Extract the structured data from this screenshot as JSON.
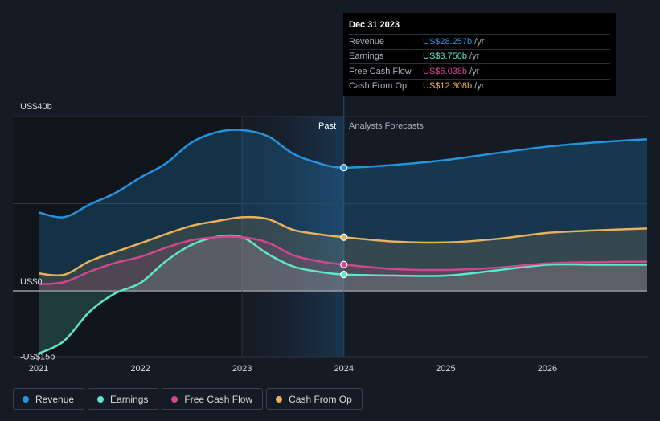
{
  "chart_data": {
    "type": "area",
    "x_unit": "year",
    "x_range": [
      2021.0,
      2026.98
    ],
    "y_range": [
      -15.5,
      40
    ],
    "y_ticks": [
      {
        "value": 40,
        "label": "US$40b"
      },
      {
        "value": 0,
        "label": "US$0"
      },
      {
        "value": -15,
        "label": "-US$15b"
      }
    ],
    "x_ticks": [
      {
        "value": 2021,
        "label": "2021"
      },
      {
        "value": 2022,
        "label": "2022"
      },
      {
        "value": 2023,
        "label": "2023"
      },
      {
        "value": 2024,
        "label": "2024"
      },
      {
        "value": 2025,
        "label": "2025"
      },
      {
        "value": 2026,
        "label": "2026"
      }
    ],
    "past_label": "Past",
    "forecast_label": "Analysts Forecasts",
    "past_end": 2024.0,
    "series": [
      {
        "name": "Revenue",
        "color": "#2394df",
        "points": [
          [
            2021.0,
            18.0
          ],
          [
            2021.25,
            16.9
          ],
          [
            2021.5,
            19.8
          ],
          [
            2021.75,
            22.4
          ],
          [
            2022.0,
            26.0
          ],
          [
            2022.25,
            29.2
          ],
          [
            2022.5,
            34.0
          ],
          [
            2022.75,
            36.4
          ],
          [
            2023.0,
            36.9
          ],
          [
            2023.25,
            35.5
          ],
          [
            2023.5,
            31.5
          ],
          [
            2023.75,
            29.3
          ],
          [
            2024.0,
            28.257
          ],
          [
            2024.5,
            28.9
          ],
          [
            2025.0,
            30.0
          ],
          [
            2025.5,
            31.6
          ],
          [
            2026.0,
            33.1
          ],
          [
            2026.5,
            34.1
          ],
          [
            2026.98,
            34.8
          ]
        ]
      },
      {
        "name": "Earnings",
        "color": "#5ee6c8",
        "points": [
          [
            2021.0,
            -14.4
          ],
          [
            2021.25,
            -11.5
          ],
          [
            2021.5,
            -4.8
          ],
          [
            2021.75,
            -0.6
          ],
          [
            2022.0,
            1.8
          ],
          [
            2022.25,
            6.8
          ],
          [
            2022.5,
            10.5
          ],
          [
            2022.75,
            12.4
          ],
          [
            2023.0,
            12.3
          ],
          [
            2023.25,
            8.5
          ],
          [
            2023.5,
            5.6
          ],
          [
            2023.75,
            4.4
          ],
          [
            2024.0,
            3.75
          ],
          [
            2024.5,
            3.5
          ],
          [
            2025.0,
            3.5
          ],
          [
            2025.5,
            4.7
          ],
          [
            2026.0,
            6.0
          ],
          [
            2026.5,
            6.0
          ],
          [
            2026.98,
            6.0
          ]
        ]
      },
      {
        "name": "Free Cash Flow",
        "color": "#d1478e",
        "points": [
          [
            2021.0,
            1.5
          ],
          [
            2021.25,
            2.0
          ],
          [
            2021.5,
            4.4
          ],
          [
            2021.75,
            6.4
          ],
          [
            2022.0,
            7.8
          ],
          [
            2022.25,
            9.9
          ],
          [
            2022.5,
            11.6
          ],
          [
            2022.75,
            12.3
          ],
          [
            2023.0,
            12.3
          ],
          [
            2023.25,
            11.1
          ],
          [
            2023.5,
            8.2
          ],
          [
            2023.75,
            6.8
          ],
          [
            2024.0,
            6.038
          ],
          [
            2024.5,
            5.0
          ],
          [
            2025.0,
            4.8
          ],
          [
            2025.5,
            5.3
          ],
          [
            2026.0,
            6.3
          ],
          [
            2026.5,
            6.6
          ],
          [
            2026.98,
            6.7
          ]
        ]
      },
      {
        "name": "Cash From Op",
        "color": "#e8b15c",
        "points": [
          [
            2021.0,
            4.0
          ],
          [
            2021.25,
            3.7
          ],
          [
            2021.5,
            6.8
          ],
          [
            2021.75,
            8.9
          ],
          [
            2022.0,
            10.9
          ],
          [
            2022.25,
            13.0
          ],
          [
            2022.5,
            14.9
          ],
          [
            2022.75,
            16.0
          ],
          [
            2023.0,
            16.9
          ],
          [
            2023.25,
            16.5
          ],
          [
            2023.5,
            14.0
          ],
          [
            2023.75,
            13.0
          ],
          [
            2024.0,
            12.308
          ],
          [
            2024.5,
            11.3
          ],
          [
            2025.0,
            11.1
          ],
          [
            2025.5,
            11.9
          ],
          [
            2026.0,
            13.3
          ],
          [
            2026.5,
            13.9
          ],
          [
            2026.98,
            14.3
          ]
        ]
      }
    ]
  },
  "tooltip": {
    "date": "Dec 31 2023",
    "unit": "/yr",
    "rows": [
      {
        "label": "Revenue",
        "value": "US$28.257b",
        "color": "#2394df"
      },
      {
        "label": "Earnings",
        "value": "US$3.750b",
        "color": "#5ee6c8"
      },
      {
        "label": "Free Cash Flow",
        "value": "US$6.038b",
        "color": "#d1478e"
      },
      {
        "label": "Cash From Op",
        "value": "US$12.308b",
        "color": "#e8b15c"
      }
    ]
  },
  "legend": [
    {
      "label": "Revenue",
      "color": "#2394df"
    },
    {
      "label": "Earnings",
      "color": "#5ee6c8"
    },
    {
      "label": "Free Cash Flow",
      "color": "#d1478e"
    },
    {
      "label": "Cash From Op",
      "color": "#e8b15c"
    }
  ]
}
